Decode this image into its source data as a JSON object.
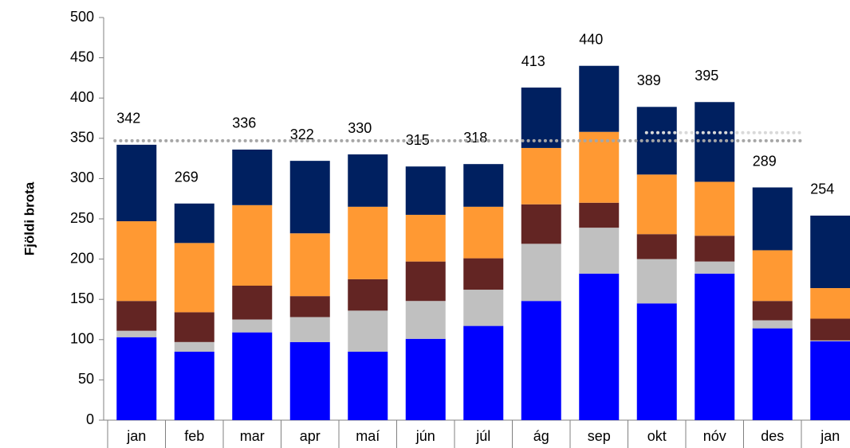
{
  "chart_data": {
    "type": "stacked_bar",
    "y_label": "Fjöldi brota",
    "categories": [
      "jan",
      "feb",
      "mar",
      "apr",
      "maí",
      "jún",
      "júl",
      "ág",
      "sep",
      "okt",
      "nóv",
      "des",
      "jan"
    ],
    "series": [
      {
        "color": "#0000ff",
        "values": [
          103,
          85,
          109,
          97,
          85,
          101,
          117,
          148,
          182,
          145,
          182,
          114,
          98
        ]
      },
      {
        "color": "#c0c0c0",
        "values": [
          8,
          12,
          16,
          31,
          51,
          47,
          45,
          71,
          57,
          55,
          15,
          10,
          1
        ]
      },
      {
        "color": "#632523",
        "values": [
          37,
          37,
          42,
          26,
          39,
          49,
          39,
          49,
          31,
          31,
          32,
          24,
          27
        ]
      },
      {
        "color": "#ff9933",
        "values": [
          99,
          86,
          100,
          78,
          90,
          58,
          64,
          70,
          88,
          74,
          67,
          63,
          38
        ]
      },
      {
        "color": "#002060",
        "values": [
          95,
          49,
          69,
          90,
          65,
          60,
          53,
          75,
          82,
          84,
          99,
          78,
          90
        ]
      }
    ],
    "totals": [
      342,
      269,
      336,
      322,
      330,
      315,
      318,
      413,
      440,
      389,
      395,
      289,
      254
    ],
    "reference_lines": [
      {
        "value": 347,
        "color": "#a6a6a6",
        "from": 0,
        "to": 11
      },
      {
        "value": 357,
        "color": "#d9d9d9",
        "from": 9,
        "to": 11
      }
    ],
    "ylim": [
      0,
      500
    ],
    "yticks": [
      0,
      50,
      100,
      150,
      200,
      250,
      300,
      350,
      400,
      450,
      500
    ]
  }
}
